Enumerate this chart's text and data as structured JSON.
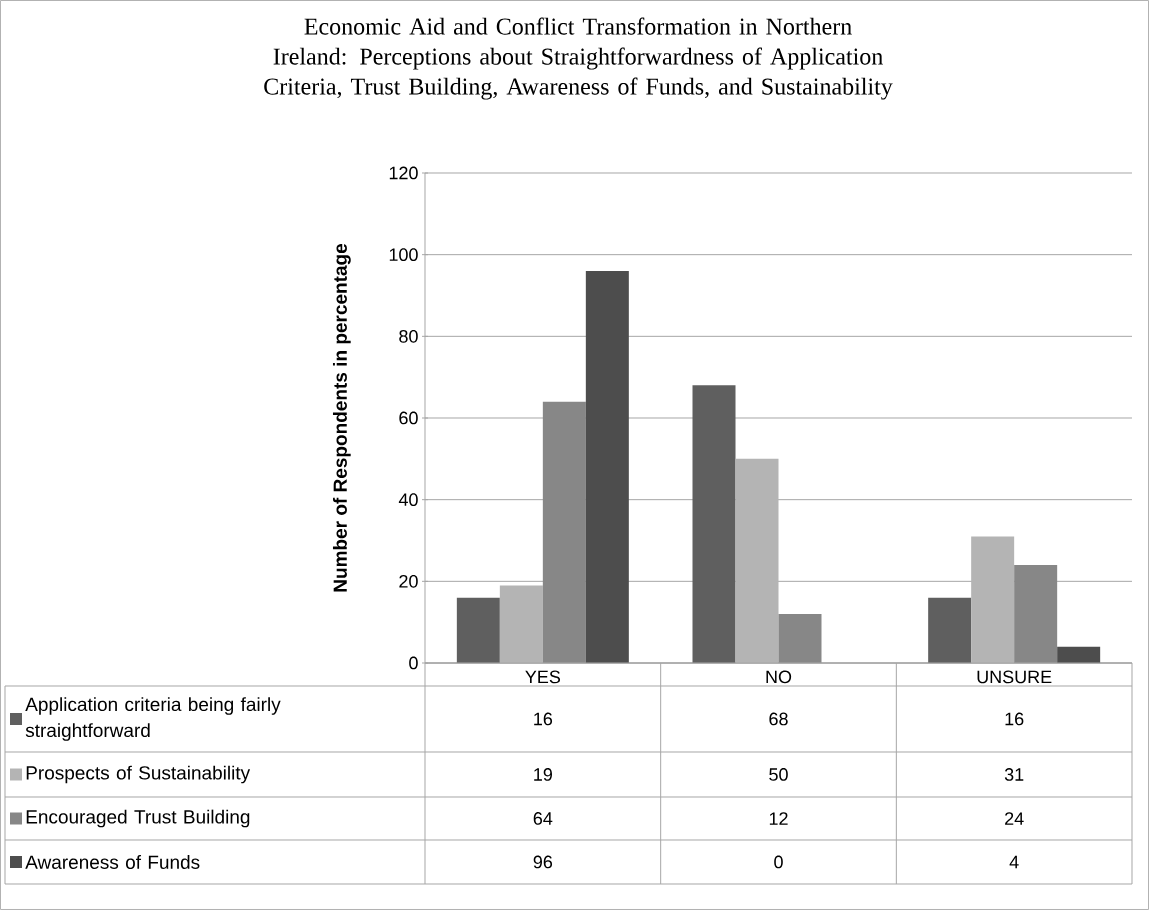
{
  "chart_data": {
    "type": "bar",
    "title": "Economic Aid and Conflict Transformation in Northern Ireland: Perceptions about Straightforwardness of Application Criteria, Trust Building, Awareness of Funds, and Sustainability",
    "ylabel": "Number of Respondents in percentage",
    "categories": [
      "YES",
      "NO",
      "UNSURE"
    ],
    "series": [
      {
        "name": "Application criteria being fairly straightforward",
        "color": "#5f5f5f",
        "values": [
          16,
          68,
          16
        ]
      },
      {
        "name": "Prospects of Sustainability",
        "color": "#b4b4b4",
        "values": [
          19,
          50,
          31
        ]
      },
      {
        "name": "Encouraged Trust Building",
        "color": "#878787",
        "values": [
          64,
          12,
          24
        ]
      },
      {
        "name": "Awareness of Funds",
        "color": "#4d4d4d",
        "values": [
          96,
          0,
          4
        ]
      }
    ],
    "ylim": [
      0,
      120
    ],
    "yticks": [
      0,
      20,
      40,
      60,
      80,
      100,
      120
    ],
    "grid": "y",
    "legend": "bottom",
    "data_labels": true
  }
}
